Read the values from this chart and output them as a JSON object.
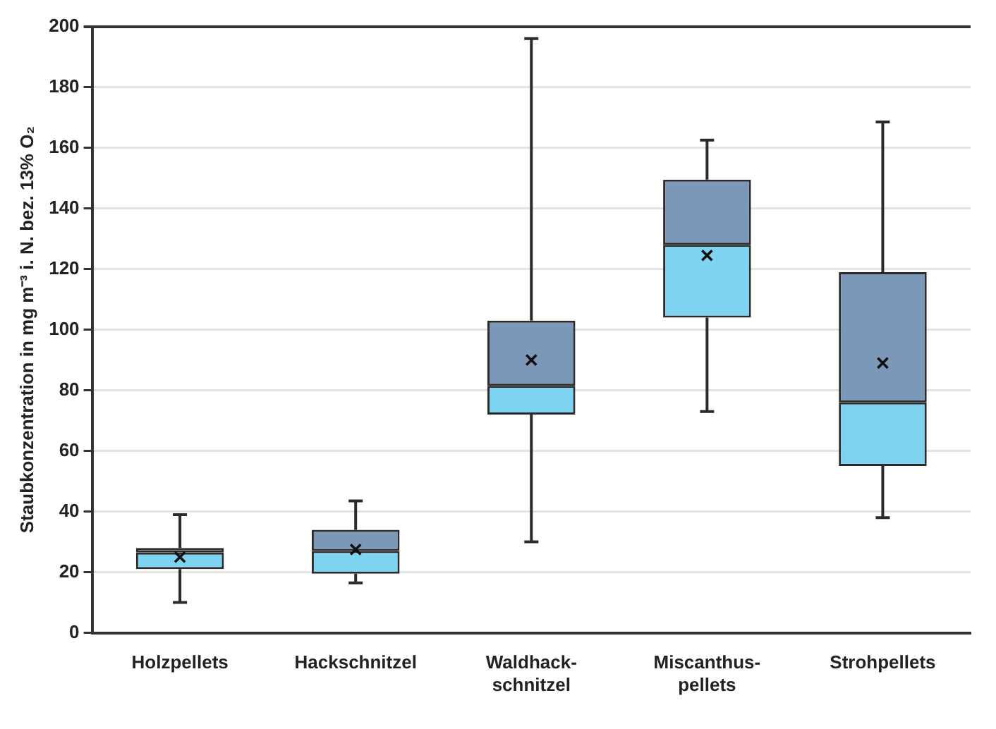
{
  "chart_data": {
    "type": "box",
    "ylabel": "Staubkonzentration in mg m⁻³ i. N. bez. 13% O₂",
    "categories": [
      "Holzpellets",
      "Hackschnitzel",
      "Waldhack-schnitzel",
      "Miscanthus-pellets",
      "Strohpellets"
    ],
    "series": [
      {
        "color": "#7b98b8",
        "colors": [
          "#7dd3f0",
          "#7dd3f0",
          "#7dd3f0",
          "#7dd3f0",
          "#7dd3f0"
        ],
        "marker": "cross",
        "boxes": [
          {
            "low": 10,
            "q1": 21,
            "median": 26.5,
            "q3": 28,
            "high": 39,
            "mean": 25
          },
          {
            "low": 16.5,
            "q1": 19.5,
            "median": 27,
            "q3": 34,
            "high": 43.5,
            "mean": 27.5
          },
          {
            "low": 30,
            "q1": 72,
            "median": 81.5,
            "q3": 103,
            "high": 196,
            "mean": 90
          },
          {
            "low": 73,
            "q1": 104,
            "median": 128,
            "q3": 149.5,
            "high": 162.5,
            "mean": 124.5
          },
          {
            "low": 38,
            "q1": 55,
            "median": 76,
            "q3": 119,
            "high": 168.5,
            "mean": 89
          }
        ]
      }
    ],
    "ylim": [
      0,
      200
    ],
    "yticks": [
      0,
      20,
      40,
      60,
      80,
      100,
      120,
      140,
      160,
      180,
      200
    ],
    "grid": "y",
    "legend": false
  }
}
